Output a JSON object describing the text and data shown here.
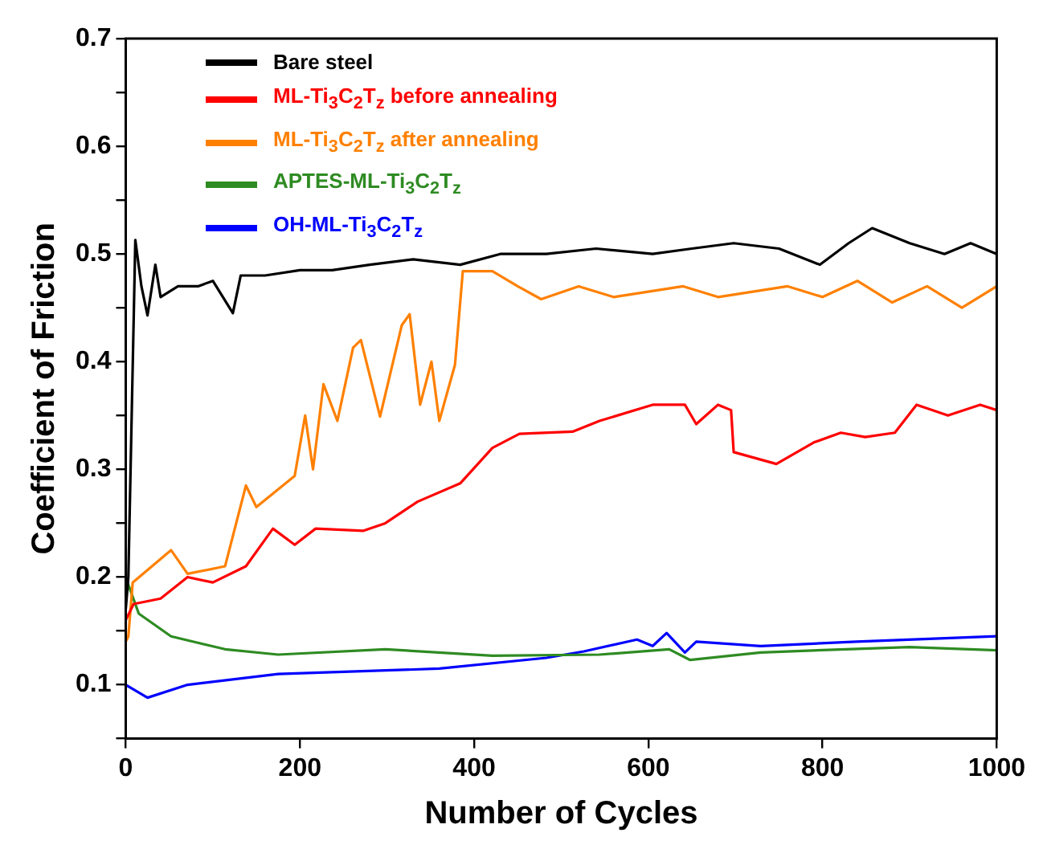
{
  "chart_data": {
    "type": "line",
    "xlabel": "Number of Cycles",
    "ylabel": "Coefficient of Friction",
    "xlim": [
      0,
      1000
    ],
    "xticks": [
      0,
      200,
      400,
      600,
      800,
      1000
    ],
    "ylim": [
      0.05,
      0.7
    ],
    "yticks": [
      {
        "value": 0.05,
        "label": null
      },
      0.1,
      {
        "value": 0.15,
        "label": null
      },
      0.2,
      {
        "value": 0.25,
        "label": null
      },
      0.3,
      {
        "value": 0.35,
        "label": null
      },
      0.4,
      {
        "value": 0.45,
        "label": null
      },
      0.5,
      {
        "value": 0.55,
        "label": null
      },
      0.6,
      {
        "value": 0.65,
        "label": null
      },
      0.7
    ],
    "grid": false,
    "legend": "top left",
    "marker": "none",
    "line_style": "solid",
    "series": [
      {
        "name": "Bare steel",
        "color": "#000000",
        "x": [
          0,
          3,
          11,
          18,
          25,
          34,
          40,
          60,
          83,
          100,
          123,
          132,
          160,
          200,
          237,
          280,
          330,
          384,
          430,
          483,
          540,
          605,
          650,
          698,
          750,
          797,
          830,
          857,
          900,
          940,
          970,
          1000
        ],
        "values": [
          0.17,
          0.2,
          0.513,
          0.47,
          0.443,
          0.49,
          0.46,
          0.47,
          0.47,
          0.475,
          0.445,
          0.48,
          0.48,
          0.485,
          0.485,
          0.49,
          0.495,
          0.49,
          0.5,
          0.5,
          0.505,
          0.5,
          0.505,
          0.51,
          0.505,
          0.49,
          0.51,
          0.524,
          0.51,
          0.5,
          0.51,
          0.5
        ]
      },
      {
        "name": "ML-Ti$_{3}$C$_{2}$T$_{z}$ before annealing",
        "color": "#ff0000",
        "x": [
          0,
          9,
          40,
          71,
          100,
          138,
          169,
          194,
          218,
          273,
          298,
          335,
          384,
          421,
          452,
          513,
          544,
          605,
          642,
          655,
          680,
          695,
          698,
          747,
          790,
          821,
          849,
          883,
          908,
          944,
          981,
          1000
        ],
        "values": [
          0.16,
          0.175,
          0.18,
          0.2,
          0.195,
          0.21,
          0.245,
          0.23,
          0.245,
          0.243,
          0.25,
          0.27,
          0.287,
          0.32,
          0.333,
          0.335,
          0.345,
          0.36,
          0.36,
          0.342,
          0.36,
          0.355,
          0.316,
          0.305,
          0.325,
          0.334,
          0.33,
          0.334,
          0.36,
          0.35,
          0.36,
          0.355
        ]
      },
      {
        "name": "ML-Ti$_{3}$C$_{2}$T$_{z}$ after annealing",
        "color": "#ff8000",
        "x": [
          0,
          3,
          8,
          52,
          71,
          114,
          138,
          150,
          194,
          206,
          215,
          227,
          243,
          261,
          270,
          292,
          317,
          326,
          338,
          351,
          360,
          378,
          387,
          421,
          450,
          477,
          520,
          560,
          600,
          640,
          680,
          720,
          760,
          800,
          840,
          880,
          920,
          960,
          1000
        ],
        "values": [
          0.14,
          0.145,
          0.195,
          0.225,
          0.203,
          0.21,
          0.285,
          0.265,
          0.294,
          0.35,
          0.3,
          0.379,
          0.345,
          0.413,
          0.42,
          0.349,
          0.434,
          0.444,
          0.36,
          0.4,
          0.345,
          0.397,
          0.484,
          0.484,
          0.47,
          0.458,
          0.47,
          0.46,
          0.465,
          0.47,
          0.46,
          0.465,
          0.47,
          0.46,
          0.475,
          0.455,
          0.47,
          0.45,
          0.47
        ]
      },
      {
        "name": "APTES-ML-Ti$_{3}$C$_{2}$T$_{z}$",
        "color": "#2e8b22",
        "x": [
          0,
          2,
          15,
          52,
          114,
          175,
          298,
          421,
          544,
          624,
          648,
          729,
          827,
          900,
          1000
        ],
        "values": [
          0.2,
          0.195,
          0.166,
          0.145,
          0.133,
          0.128,
          0.133,
          0.127,
          0.128,
          0.133,
          0.123,
          0.13,
          0.133,
          0.135,
          0.132
        ]
      },
      {
        "name": "OH-ML-Ti$_{3}$C$_{2}$T$_{z}$",
        "color": "#0000ff",
        "x": [
          0,
          25,
          71,
          175,
          360,
          483,
          526,
          587,
          605,
          621,
          642,
          655,
          729,
          839,
          1000
        ],
        "values": [
          0.1,
          0.088,
          0.1,
          0.11,
          0.115,
          0.125,
          0.131,
          0.142,
          0.136,
          0.148,
          0.13,
          0.14,
          0.136,
          0.14,
          0.145
        ]
      }
    ]
  }
}
